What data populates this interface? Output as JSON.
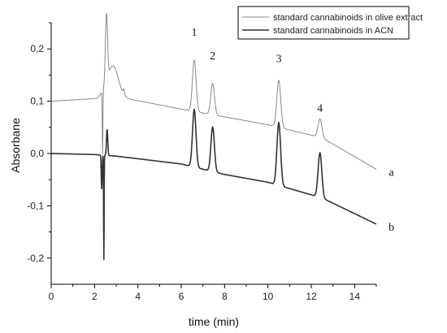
{
  "chart_data": {
    "type": "line",
    "xlabel": "time (min)",
    "ylabel": "Absorbane",
    "xlim": [
      0,
      15
    ],
    "ylim": [
      -0.25,
      0.25
    ],
    "x_ticks": [
      0,
      2,
      4,
      6,
      8,
      10,
      12,
      14
    ],
    "x_tick_labels": [
      "0",
      "2",
      "4",
      "6",
      "8",
      "10",
      "12",
      "14"
    ],
    "y_ticks": [
      -0.2,
      -0.1,
      0.0,
      0.1,
      0.2
    ],
    "y_tick_labels": [
      "-0,2",
      "-0,1",
      "0,0",
      "0,1",
      "0,2"
    ],
    "grid": false,
    "legend_position": "top-right",
    "series": [
      {
        "name": "standard cannabinoids in olive extract",
        "label": "a",
        "color": "#888888",
        "baseline": [
          [
            0,
            0.1
          ],
          [
            2.1,
            0.105
          ],
          [
            2.3,
            0.11
          ],
          [
            3.5,
            0.105
          ],
          [
            6,
            0.085
          ],
          [
            8,
            0.07
          ],
          [
            10,
            0.055
          ],
          [
            12.5,
            0.03
          ],
          [
            15,
            -0.03
          ]
        ],
        "features": [
          {
            "center": 2.37,
            "height": -0.12,
            "width": 0.015
          },
          {
            "center": 2.55,
            "height": 0.13,
            "width": 0.05
          },
          {
            "center": 2.85,
            "height": 0.06,
            "width": 0.25
          },
          {
            "center": 3.35,
            "height": 0.01,
            "width": 0.03
          },
          {
            "center": 6.6,
            "height": 0.098,
            "width": 0.085
          },
          {
            "center": 7.45,
            "height": 0.06,
            "width": 0.085
          },
          {
            "center": 10.5,
            "height": 0.09,
            "width": 0.09
          },
          {
            "center": 12.4,
            "height": 0.035,
            "width": 0.09
          }
        ]
      },
      {
        "name": "standard cannabinoids in ACN",
        "label": "b",
        "color": "#333333",
        "baseline": [
          [
            0,
            0.0
          ],
          [
            2.0,
            -0.002
          ],
          [
            3.0,
            -0.005
          ],
          [
            6,
            -0.02
          ],
          [
            8,
            -0.04
          ],
          [
            10,
            -0.055
          ],
          [
            12.5,
            -0.085
          ],
          [
            15,
            -0.135
          ]
        ],
        "features": [
          {
            "center": 2.33,
            "height": -0.065,
            "width": 0.02
          },
          {
            "center": 2.43,
            "height": -0.2,
            "width": 0.012
          },
          {
            "center": 2.58,
            "height": 0.05,
            "width": 0.03
          },
          {
            "center": 6.6,
            "height": 0.11,
            "width": 0.08
          },
          {
            "center": 7.45,
            "height": 0.085,
            "width": 0.08
          },
          {
            "center": 10.5,
            "height": 0.12,
            "width": 0.085
          },
          {
            "center": 12.4,
            "height": 0.085,
            "width": 0.085
          }
        ]
      }
    ],
    "peak_labels": [
      {
        "text": "1",
        "x": 6.6,
        "y": 0.225
      },
      {
        "text": "2",
        "x": 7.45,
        "y": 0.18
      },
      {
        "text": "3",
        "x": 10.5,
        "y": 0.175
      },
      {
        "text": "4",
        "x": 12.4,
        "y": 0.08
      }
    ],
    "curve_labels": [
      {
        "text": "a",
        "x": 15.7,
        "y": -0.035
      },
      {
        "text": "b",
        "x": 15.7,
        "y": -0.14
      }
    ]
  }
}
